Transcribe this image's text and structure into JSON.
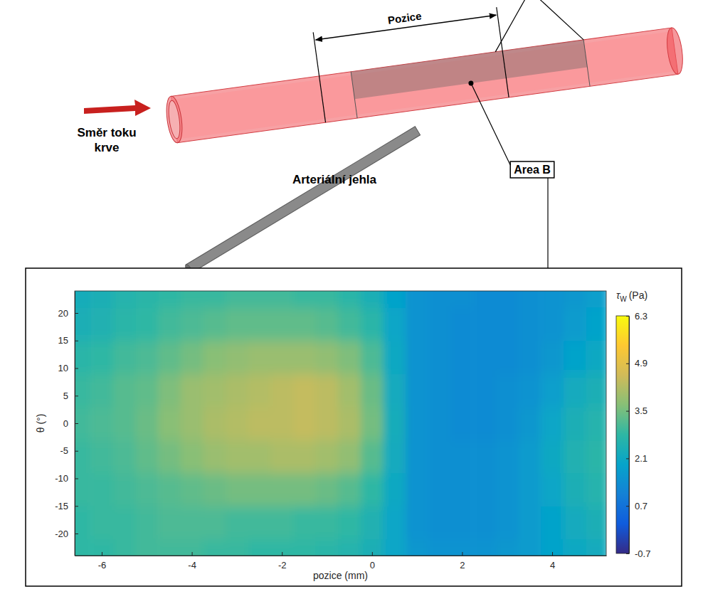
{
  "chart_data": {
    "type": "heatmap",
    "x_label": "pozice (mm)",
    "y_label": "θ (°)",
    "xlim": [
      -6.6,
      5.2
    ],
    "xticks": [
      -6,
      -4,
      -2,
      0,
      2,
      4
    ],
    "ylim": [
      -24,
      24
    ],
    "yticks": [
      -20,
      -15,
      -10,
      -5,
      0,
      5,
      10,
      15,
      20
    ],
    "x": [
      -7,
      -6.5,
      -6,
      -5.5,
      -5,
      -4.5,
      -4,
      -3.5,
      -3,
      -2.5,
      -2,
      -1.5,
      -1,
      -0.5,
      0,
      0.5,
      1,
      1.5,
      2,
      2.5,
      3,
      3.5,
      4,
      4.5,
      5
    ],
    "y": [
      -24,
      -18,
      -12,
      -6,
      0,
      6,
      12,
      18,
      24
    ],
    "values": [
      [
        2.7,
        2.8,
        2.8,
        2.9,
        3.0,
        3.0,
        3.0,
        2.9,
        2.9,
        2.8,
        2.8,
        2.8,
        2.7,
        2.6,
        2.4,
        2.0,
        1.6,
        1.5,
        1.5,
        1.5,
        1.6,
        1.7,
        1.9,
        2.1,
        2.2
      ],
      [
        2.8,
        2.8,
        2.9,
        2.9,
        3.0,
        3.1,
        3.1,
        3.1,
        3.0,
        3.0,
        3.0,
        2.9,
        2.9,
        2.8,
        2.5,
        2.0,
        1.5,
        1.4,
        1.4,
        1.4,
        1.5,
        1.7,
        1.9,
        2.2,
        2.4
      ],
      [
        2.8,
        2.9,
        2.9,
        3.0,
        3.1,
        3.2,
        3.3,
        3.4,
        3.5,
        3.5,
        3.5,
        3.5,
        3.4,
        3.2,
        2.8,
        2.1,
        1.5,
        1.4,
        1.4,
        1.4,
        1.5,
        1.7,
        2.0,
        2.4,
        2.6
      ],
      [
        2.9,
        2.9,
        3.0,
        3.1,
        3.3,
        3.5,
        3.7,
        3.9,
        4.0,
        4.0,
        4.1,
        4.1,
        4.0,
        3.8,
        3.2,
        2.2,
        1.5,
        1.4,
        1.4,
        1.4,
        1.5,
        1.7,
        2.1,
        2.5,
        2.7
      ],
      [
        2.9,
        3.0,
        3.1,
        3.2,
        3.4,
        3.7,
        3.9,
        4.1,
        4.2,
        4.3,
        4.3,
        4.4,
        4.3,
        4.1,
        3.5,
        2.3,
        1.5,
        1.4,
        1.3,
        1.3,
        1.4,
        1.6,
        2.0,
        2.4,
        2.6
      ],
      [
        2.8,
        2.9,
        3.0,
        3.2,
        3.3,
        3.6,
        3.9,
        4.0,
        4.1,
        4.2,
        4.3,
        4.4,
        4.3,
        4.0,
        3.4,
        2.2,
        1.5,
        1.4,
        1.3,
        1.3,
        1.4,
        1.5,
        1.8,
        2.2,
        2.4
      ],
      [
        2.6,
        2.7,
        2.8,
        3.0,
        3.1,
        3.3,
        3.5,
        3.7,
        3.8,
        3.9,
        3.9,
        3.9,
        3.8,
        3.6,
        3.1,
        2.1,
        1.5,
        1.4,
        1.3,
        1.3,
        1.3,
        1.4,
        1.6,
        1.9,
        2.1
      ],
      [
        2.3,
        2.4,
        2.5,
        2.7,
        2.8,
        3.0,
        3.1,
        3.2,
        3.3,
        3.3,
        3.3,
        3.3,
        3.2,
        3.0,
        2.7,
        2.0,
        1.5,
        1.4,
        1.3,
        1.3,
        1.3,
        1.4,
        1.5,
        1.7,
        1.9
      ],
      [
        2.2,
        2.3,
        2.4,
        2.6,
        2.7,
        2.8,
        2.9,
        2.9,
        3.0,
        3.0,
        3.0,
        2.9,
        2.9,
        2.7,
        2.4,
        1.9,
        1.5,
        1.4,
        1.4,
        1.3,
        1.3,
        1.4,
        1.5,
        1.6,
        1.8
      ]
    ],
    "colorbar": {
      "symbol": "τ",
      "subscript": "W",
      "unit": "(Pa)",
      "lim": [
        -0.7,
        6.3
      ],
      "ticks": [
        -0.7,
        0.7,
        2.1,
        3.5,
        4.9,
        6.3
      ]
    }
  },
  "diagram": {
    "position_label": "Pozice",
    "area_label": "Area B",
    "flow_label": "Směr toku krve",
    "needle_label": "Arteriální jehla"
  }
}
